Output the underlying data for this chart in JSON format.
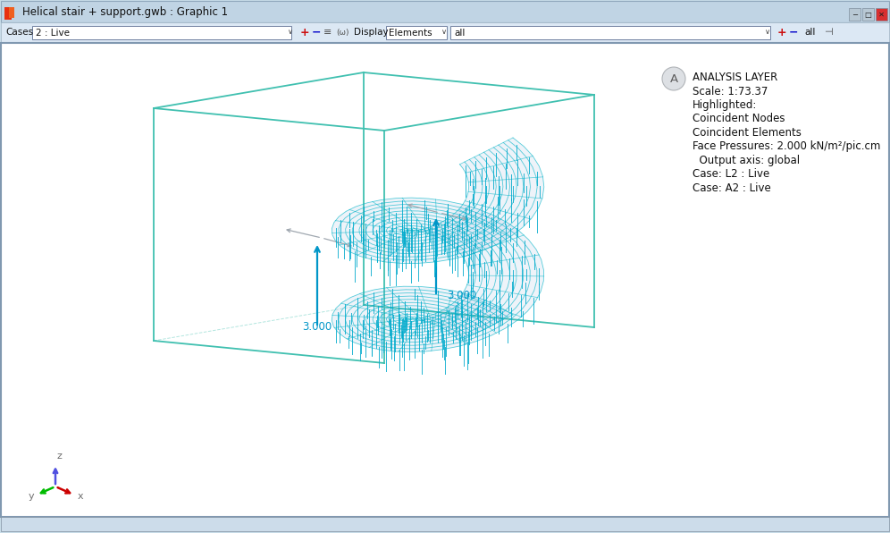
{
  "title_bar": "Helical stair + support.gwb : Graphic 1",
  "toolbar_cases_label": "Cases",
  "toolbar_cases_value": "2 : Live",
  "toolbar_display_label": "Display",
  "toolbar_display_value": "Elements",
  "toolbar_all_value": "all",
  "viewport_bg": "#ffffff",
  "outer_bg": "#c8dce8",
  "titlebar_bg": "#c0d4e4",
  "toolbar_bg": "#dce8f4",
  "annotation_title": "ANALYSIS LAYER",
  "annotation_lines": [
    "Scale: 1:73.37",
    "Highlighted:",
    "Coincident Nodes",
    "Coincident Elements",
    "Face Pressures: 2.000 kN/m²/pic.cm",
    "  Output axis: global",
    "Case: L2 : Live",
    "Case: A2 : Live"
  ],
  "circle_label": "A",
  "load_label_1": "3.000",
  "load_label_2": "3.000",
  "stair_mesh_color": "#7b9fd4",
  "stair_line_color": "#00b4c8",
  "load_arrow_color": "#0096c8",
  "load_label_color": "#0096c8",
  "box_edge_color": "#40c0b0",
  "axis_z_color": "#5050e0",
  "axis_y_color": "#00bb00",
  "axis_x_color": "#cc0000",
  "axis_text_color": "#707070",
  "gray_arrow_color": "#a0a8b0",
  "spike_color": "#00aacc"
}
